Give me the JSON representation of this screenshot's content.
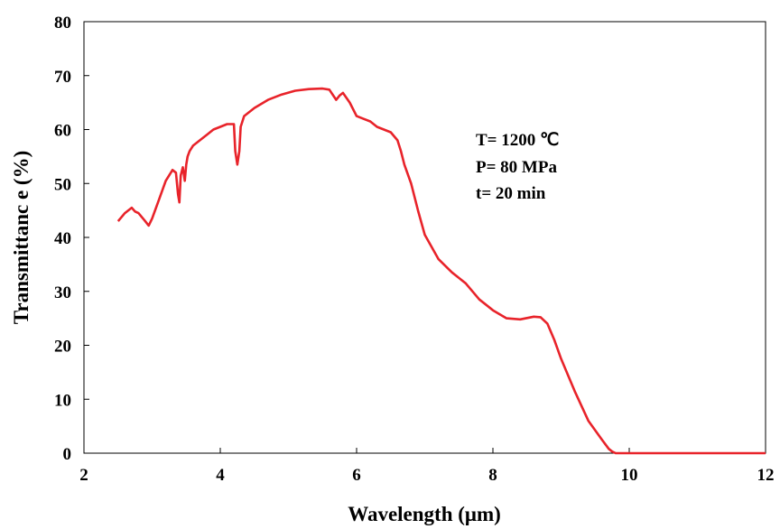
{
  "chart_data": {
    "type": "line",
    "title": "",
    "xlabel": "Wavelength (μm)",
    "ylabel": "Transmittanc e (%)",
    "xlim": [
      2,
      12
    ],
    "ylim": [
      0,
      80
    ],
    "xticks": [
      2,
      4,
      6,
      8,
      10,
      12
    ],
    "yticks": [
      0,
      10,
      20,
      30,
      40,
      50,
      60,
      70,
      80
    ],
    "grid": false,
    "legend": "none",
    "annotations": [
      "T= 1200 ℃",
      "P= 80 MPa",
      "t= 20 min"
    ],
    "series": [
      {
        "color": "#e8232a",
        "x": [
          2.5,
          2.6,
          2.7,
          2.75,
          2.8,
          2.9,
          2.95,
          3.0,
          3.1,
          3.2,
          3.3,
          3.35,
          3.38,
          3.4,
          3.42,
          3.45,
          3.48,
          3.5,
          3.52,
          3.55,
          3.6,
          3.7,
          3.8,
          3.9,
          4.0,
          4.1,
          4.2,
          4.22,
          4.25,
          4.28,
          4.3,
          4.35,
          4.4,
          4.5,
          4.7,
          4.9,
          5.1,
          5.3,
          5.5,
          5.6,
          5.7,
          5.75,
          5.8,
          5.9,
          6.0,
          6.1,
          6.2,
          6.3,
          6.4,
          6.5,
          6.6,
          6.65,
          6.7,
          6.8,
          6.9,
          7.0,
          7.2,
          7.4,
          7.6,
          7.8,
          7.9,
          8.0,
          8.2,
          8.4,
          8.6,
          8.7,
          8.8,
          8.9,
          9.0,
          9.2,
          9.4,
          9.6,
          9.7,
          9.75,
          9.8,
          9.85,
          10.0,
          10.5,
          11.0,
          11.5,
          12.0
        ],
        "y": [
          43.0,
          44.5,
          45.5,
          44.8,
          44.5,
          43.0,
          42.2,
          43.5,
          47.0,
          50.5,
          52.5,
          52.0,
          48.0,
          46.5,
          51.5,
          53.0,
          50.5,
          53.5,
          55.0,
          56.0,
          57.0,
          58.0,
          59.0,
          60.0,
          60.5,
          61.0,
          61.0,
          56.0,
          53.5,
          56.0,
          60.5,
          62.5,
          63.0,
          64.0,
          65.5,
          66.5,
          67.2,
          67.5,
          67.6,
          67.4,
          65.5,
          66.3,
          66.8,
          65.0,
          62.5,
          62.0,
          61.5,
          60.5,
          60.0,
          59.5,
          58.0,
          56.0,
          53.5,
          50.0,
          45.0,
          40.5,
          36.0,
          33.5,
          31.5,
          28.5,
          27.5,
          26.5,
          25.0,
          24.8,
          25.3,
          25.2,
          24.0,
          21.0,
          17.5,
          11.5,
          6.0,
          2.5,
          0.8,
          0.3,
          0.0,
          0.0,
          0.0,
          0.0,
          0.0,
          0.0,
          0.0
        ]
      }
    ]
  }
}
